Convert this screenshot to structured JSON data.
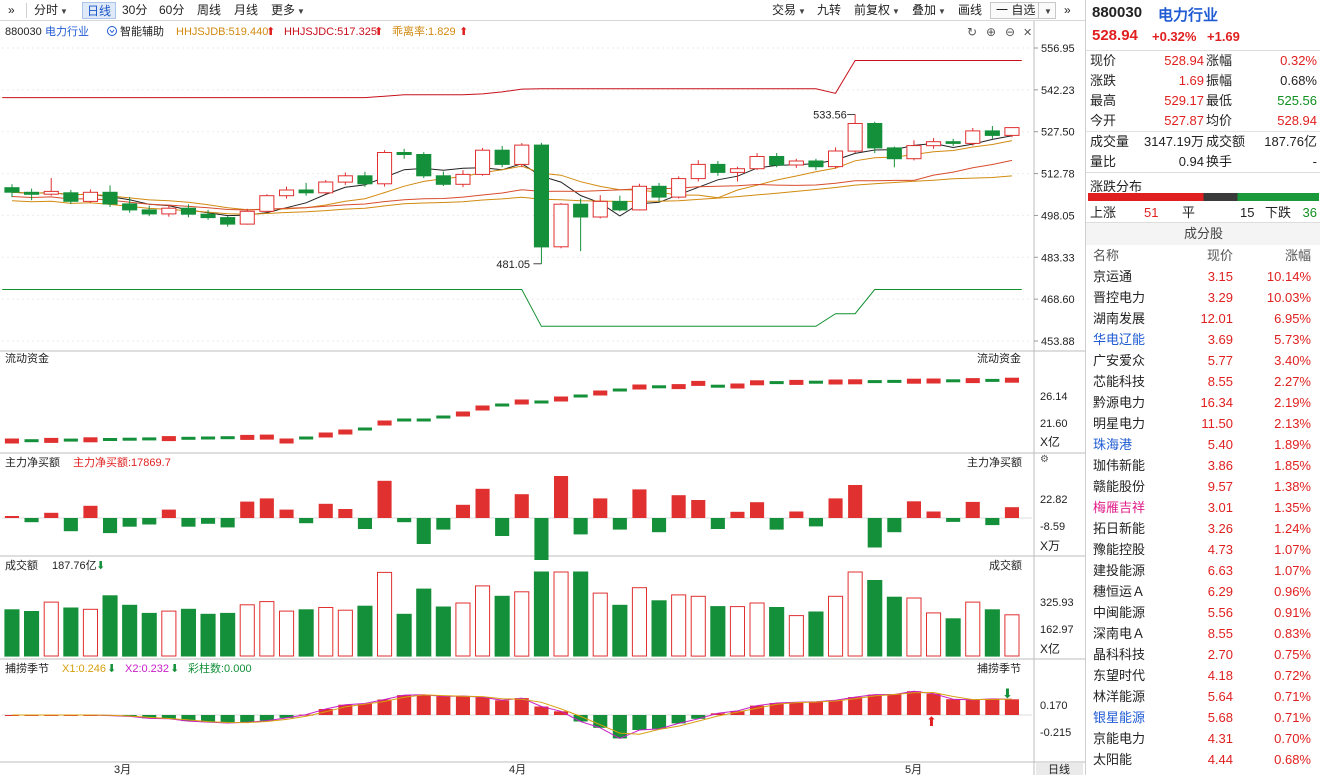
{
  "toolbar": {
    "left_items": [
      "分时",
      "日线",
      "30分",
      "60分",
      "周线",
      "月线",
      "更多"
    ],
    "right_items": [
      "交易",
      "九转",
      "前复权",
      "叠加",
      "画线",
      "一 自选"
    ]
  },
  "main": {
    "code": "880030",
    "name": "电力行业",
    "assist_label": "智能辅助",
    "ind1": "HHJSJDB:519.440",
    "ind2": "HHJSJDC:517.325",
    "ind3": "乖离率:1.829",
    "high_marker": "533.56",
    "low_marker": "481.05",
    "y_ticks": [
      "556.95",
      "542.23",
      "527.50",
      "512.78",
      "498.05",
      "483.33",
      "468.60",
      "453.88"
    ]
  },
  "fund_panel": {
    "title": "流动资金",
    "title_right": "流动资金",
    "ticks": [
      "26.14",
      "21.60"
    ],
    "unit": "X亿"
  },
  "net_panel": {
    "title": "主力净买额",
    "value_label": "主力净买额:17869.7",
    "title_right": "主力净买额",
    "ticks": [
      "22.82",
      "-8.59"
    ],
    "unit": "X万"
  },
  "amount_panel": {
    "title": "成交额",
    "value_label": "187.76亿",
    "title_right": "成交额",
    "ticks": [
      "325.93",
      "162.97"
    ],
    "unit": "X亿"
  },
  "season_panel": {
    "title": "捕捞季节",
    "x1": "X1:0.246",
    "x2": "X2:0.232",
    "bars": "彩柱数:0.000",
    "title_right": "捕捞季节",
    "ticks": [
      "0.170",
      "-0.215"
    ]
  },
  "x_labels": [
    "3月",
    "4月",
    "5月"
  ],
  "period_tag": "日线",
  "quote": {
    "code": "880030",
    "name": "电力行业",
    "price": "528.94",
    "pct": "+0.32%",
    "change": "+1.69",
    "rows": [
      [
        "现价",
        "528.94",
        "涨幅",
        "0.32%"
      ],
      [
        "涨跌",
        "1.69",
        "振幅",
        "0.68%"
      ],
      [
        "最高",
        "529.17",
        "最低",
        "525.56"
      ],
      [
        "今开",
        "527.87",
        "均价",
        "528.94"
      ],
      [
        "成交量",
        "3147.19万",
        "成交额",
        "187.76亿"
      ],
      [
        "量比",
        "0.94",
        "换手",
        "-"
      ]
    ]
  },
  "distribution": {
    "title": "涨跌分布",
    "up_label": "上涨",
    "up": "51",
    "flat_label": "平",
    "flat": "15",
    "down_label": "下跌",
    "down": "36"
  },
  "constituents": {
    "title": "成分股",
    "headers": [
      "名称",
      "现价",
      "涨幅"
    ],
    "rows": [
      [
        "京运通",
        "3.15",
        "10.14%"
      ],
      [
        "晋控电力",
        "3.29",
        "10.03%"
      ],
      [
        "湖南发展",
        "12.01",
        "6.95%"
      ],
      [
        "华电辽能",
        "3.69",
        "5.73%"
      ],
      [
        "广安爱众",
        "5.77",
        "3.40%"
      ],
      [
        "芯能科技",
        "8.55",
        "2.27%"
      ],
      [
        "黔源电力",
        "16.34",
        "2.19%"
      ],
      [
        "明星电力",
        "11.50",
        "2.13%"
      ],
      [
        "珠海港",
        "5.40",
        "1.89%"
      ],
      [
        "珈伟新能",
        "3.86",
        "1.85%"
      ],
      [
        "赣能股份",
        "9.57",
        "1.38%"
      ],
      [
        "梅雁吉祥",
        "3.01",
        "1.35%"
      ],
      [
        "拓日新能",
        "3.26",
        "1.24%"
      ],
      [
        "豫能控股",
        "4.73",
        "1.07%"
      ],
      [
        "建投能源",
        "6.63",
        "1.07%"
      ],
      [
        "穗恒运Ａ",
        "6.29",
        "0.96%"
      ],
      [
        "中闽能源",
        "5.56",
        "0.91%"
      ],
      [
        "深南电Ａ",
        "8.55",
        "0.83%"
      ],
      [
        "晶科科技",
        "2.70",
        "0.75%"
      ],
      [
        "东望时代",
        "4.18",
        "0.72%"
      ],
      [
        "林洋能源",
        "5.64",
        "0.71%"
      ],
      [
        "银星能源",
        "5.68",
        "0.71%"
      ],
      [
        "京能电力",
        "4.31",
        "0.70%"
      ],
      [
        "太阳能",
        "4.44",
        "0.68%"
      ]
    ],
    "name_colors": {
      "华电辽能": "#1f5bd3",
      "珠海港": "#1f5bd3",
      "梅雁吉祥": "#e0208a",
      "银星能源": "#1f5bd3"
    }
  },
  "colors": {
    "up": "#e03030",
    "down": "#14903a",
    "band_upper": "#c8101c",
    "band_lower": "#149030",
    "ma_short": "#222222",
    "ma_mid": "#d28a10",
    "ma_long": "#d84c2c",
    "k_line": "#c81ec8",
    "d_line": "#d8a010"
  },
  "chart_data": {
    "type": "candlestick",
    "title": "880030 电力行业",
    "period": "日线",
    "ylim": [
      453.88,
      556.95
    ],
    "y_ticks": [
      556.95,
      542.23,
      527.5,
      512.78,
      498.05,
      483.33,
      468.6,
      453.88
    ],
    "x_month_labels": [
      "3月",
      "4月",
      "5月"
    ],
    "annotations": [
      {
        "label": "533.56",
        "kind": "high"
      },
      {
        "label": "481.05",
        "kind": "low"
      }
    ],
    "current": {
      "price": 528.94,
      "high": 529.17,
      "low": 525.56,
      "open": 527.87
    },
    "ohlc_approx": [
      [
        507.8,
        509.0,
        504.5,
        506.2
      ],
      [
        506.2,
        507.5,
        503.4,
        505.5
      ],
      [
        505.5,
        511.2,
        505.0,
        506.5
      ],
      [
        506.0,
        507.0,
        502.1,
        503.0
      ],
      [
        503.0,
        507.2,
        502.6,
        506.2
      ],
      [
        506.2,
        508.6,
        501.0,
        502.1
      ],
      [
        502.1,
        504.5,
        499.0,
        500.0
      ],
      [
        500.0,
        501.5,
        497.8,
        498.6
      ],
      [
        498.6,
        501.8,
        497.6,
        500.6
      ],
      [
        500.6,
        502.0,
        497.4,
        498.5
      ],
      [
        498.5,
        500.0,
        496.5,
        497.3
      ],
      [
        497.3,
        497.8,
        494.1,
        495.0
      ],
      [
        495.0,
        500.4,
        494.8,
        499.5
      ],
      [
        499.5,
        505.5,
        499.2,
        505.0
      ],
      [
        505.0,
        508.2,
        504.0,
        507.0
      ],
      [
        507.0,
        509.5,
        505.0,
        506.0
      ],
      [
        506.0,
        510.5,
        505.5,
        509.8
      ],
      [
        509.8,
        513.2,
        508.8,
        512.0
      ],
      [
        512.0,
        513.4,
        508.1,
        509.2
      ],
      [
        509.2,
        521.0,
        508.2,
        520.2
      ],
      [
        520.2,
        521.5,
        518.0,
        519.5
      ],
      [
        519.5,
        520.3,
        511.2,
        512.0
      ],
      [
        512.0,
        513.5,
        508.4,
        509.0
      ],
      [
        509.0,
        514.0,
        508.0,
        512.5
      ],
      [
        512.5,
        521.8,
        512.0,
        521.0
      ],
      [
        521.0,
        522.5,
        515.0,
        516.0
      ],
      [
        516.0,
        523.5,
        515.0,
        522.8
      ],
      [
        522.8,
        523.6,
        481.05,
        487.0
      ],
      [
        487.0,
        502.4,
        486.5,
        502.0
      ],
      [
        502.0,
        504.0,
        485.5,
        497.5
      ],
      [
        497.5,
        505.2,
        497.0,
        503.0
      ],
      [
        503.0,
        505.0,
        499.5,
        500.0
      ],
      [
        500.0,
        509.2,
        499.8,
        508.3
      ],
      [
        508.3,
        509.5,
        503.0,
        504.5
      ],
      [
        504.5,
        511.8,
        504.0,
        511.0
      ],
      [
        511.0,
        517.5,
        510.0,
        516.0
      ],
      [
        516.0,
        517.2,
        512.0,
        513.2
      ],
      [
        513.2,
        515.2,
        510.0,
        514.5
      ],
      [
        514.5,
        520.0,
        514.0,
        518.8
      ],
      [
        518.8,
        520.0,
        515.0,
        515.8
      ],
      [
        515.8,
        518.0,
        514.8,
        517.2
      ],
      [
        517.2,
        518.0,
        514.0,
        515.2
      ],
      [
        515.2,
        522.0,
        514.5,
        520.7
      ],
      [
        520.7,
        533.56,
        520.0,
        530.4
      ],
      [
        530.4,
        531.0,
        520.0,
        521.8
      ],
      [
        521.8,
        522.3,
        515.0,
        518.0
      ],
      [
        518.0,
        524.5,
        517.4,
        522.6
      ],
      [
        522.6,
        525.3,
        521.5,
        524.0
      ],
      [
        524.0,
        525.0,
        522.5,
        523.4
      ],
      [
        523.4,
        528.8,
        522.6,
        527.8
      ],
      [
        527.8,
        529.5,
        525.0,
        526.2
      ],
      [
        526.2,
        528.94,
        525.56,
        528.94
      ]
    ]
  }
}
